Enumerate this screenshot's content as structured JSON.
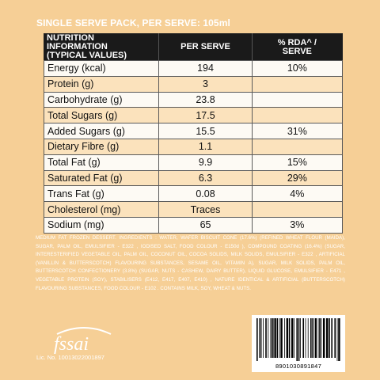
{
  "header": {
    "title": "SINGLE SERVE PACK, PER SERVE: 105ml"
  },
  "table": {
    "columns": [
      "NUTRITION INFORMATION\n(TYPICAL VALUES)",
      "PER SERVE",
      "% RDA^ /\nSERVE"
    ],
    "rows": [
      [
        "Energy (kcal)",
        "194",
        "10%"
      ],
      [
        "Protein (g)",
        "3",
        null
      ],
      [
        "Carbohydrate (g)",
        "23.8",
        null
      ],
      [
        "Total Sugars (g)",
        "17.5",
        null
      ],
      [
        "Added Sugars (g)",
        "15.5",
        "31%"
      ],
      [
        "Dietary Fibre (g)",
        "1.1",
        null
      ],
      [
        "Total Fat (g)",
        "9.9",
        "15%"
      ],
      [
        "Saturated Fat (g)",
        "6.3",
        "29%"
      ],
      [
        "Trans Fat (g)",
        "0.08",
        "4%"
      ],
      [
        "Cholesterol (mg)",
        "Traces",
        null
      ],
      [
        "Sodium (mg)",
        "65",
        "3%"
      ]
    ]
  },
  "ingredients": "MEDIUM FAT FROZEN DESSERT. INGREDIENTS : WATER, WAFER BISCUIT CONE (17.6%) (REFINED WHEAT FLOUR (MAIDA), SUGAR, PALM OIL, EMULSIFIER - E322 , IODISED SALT, FOOD COLOUR - E150d ), COMPOUND COATING (16.4%) (SUGAR, INTERESTERIFIED VEGETABLE OIL, PALM OIL, COCONUT OIL, COCOA SOLIDS, MILK SOLIDS, EMULSIFIER - E322 , ARTIFICIAL (VANILLIN & BUTTERSCOTCH) FLAVOURING SUBSTANCES, SESAME OIL, VITAMIN A), SUGAR, MILK SOLIDS, PALM OIL, BUTTERSCOTCH CONFECTIONERY (3.8%) (SUGAR, NUTS - CASHEW, DAIRY BUTTER), LIQUID GLUCOSE, EMULSIFIER - E471 , VEGETABLE PROTEIN (SOY), STABILISERS (E412, E417, E407, E410) , NATURE IDENTICAL & ARTIFICIAL (BUTTERSCOTCH) FLAVOURING SUBSTANCES, FOOD COLOUR - E102 . CONTAINS MILK, SOY, WHEAT & NUTS.",
  "footer": {
    "logo": "fssai",
    "licence": "Lic. No. 10013022001897",
    "barcode": "8901030891847"
  }
}
